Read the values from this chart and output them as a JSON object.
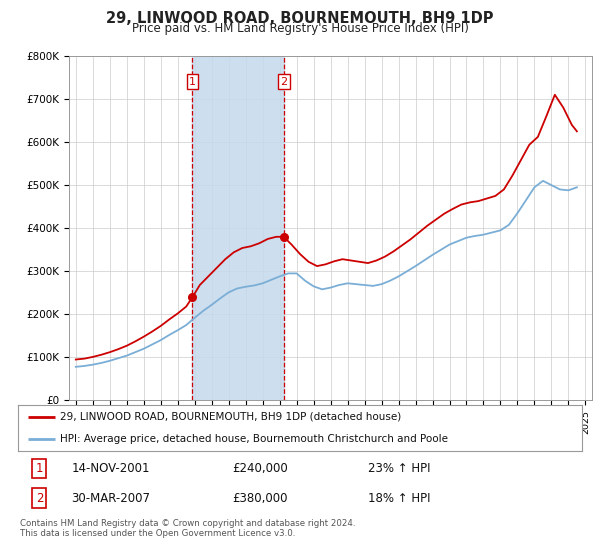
{
  "title": "29, LINWOOD ROAD, BOURNEMOUTH, BH9 1DP",
  "subtitle": "Price paid vs. HM Land Registry's House Price Index (HPI)",
  "ylabel_ticks": [
    "£0",
    "£100K",
    "£200K",
    "£300K",
    "£400K",
    "£500K",
    "£600K",
    "£700K",
    "£800K"
  ],
  "ylim": [
    0,
    800000
  ],
  "xlim_start": 1994.6,
  "xlim_end": 2025.4,
  "sale1_date": 2001.87,
  "sale1_price": 240000,
  "sale2_date": 2007.24,
  "sale2_price": 380000,
  "shade_color": "#c5d9ed",
  "vline_color": "#cc0000",
  "legend_line1": "29, LINWOOD ROAD, BOURNEMOUTH, BH9 1DP (detached house)",
  "legend_line2": "HPI: Average price, detached house, Bournemouth Christchurch and Poole",
  "annotation1_date": "14-NOV-2001",
  "annotation1_price": "£240,000",
  "annotation1_hpi": "23% ↑ HPI",
  "annotation2_date": "30-MAR-2007",
  "annotation2_price": "£380,000",
  "annotation2_hpi": "18% ↑ HPI",
  "footer": "Contains HM Land Registry data © Crown copyright and database right 2024.\nThis data is licensed under the Open Government Licence v3.0.",
  "line_color_red": "#cc0000",
  "line_color_blue": "#7aaed6",
  "background_color": "#ffffff",
  "grid_color": "#cccccc",
  "hpi_years": [
    1995.0,
    1995.5,
    1996.0,
    1996.5,
    1997.0,
    1997.5,
    1998.0,
    1998.5,
    1999.0,
    1999.5,
    2000.0,
    2000.5,
    2001.0,
    2001.5,
    2002.0,
    2002.5,
    2003.0,
    2003.5,
    2004.0,
    2004.5,
    2005.0,
    2005.5,
    2006.0,
    2006.5,
    2007.0,
    2007.5,
    2008.0,
    2008.5,
    2009.0,
    2009.5,
    2010.0,
    2010.5,
    2011.0,
    2011.5,
    2012.0,
    2012.5,
    2013.0,
    2013.5,
    2014.0,
    2014.5,
    2015.0,
    2015.5,
    2016.0,
    2016.5,
    2017.0,
    2017.5,
    2018.0,
    2018.5,
    2019.0,
    2019.5,
    2020.0,
    2020.5,
    2021.0,
    2021.5,
    2022.0,
    2022.5,
    2023.0,
    2023.5,
    2024.0,
    2024.5
  ],
  "hpi_values": [
    78000,
    80000,
    83000,
    87000,
    92000,
    98000,
    104000,
    112000,
    120000,
    130000,
    140000,
    152000,
    163000,
    175000,
    192000,
    208000,
    222000,
    237000,
    251000,
    260000,
    264000,
    267000,
    272000,
    280000,
    288000,
    295000,
    295000,
    278000,
    265000,
    258000,
    262000,
    268000,
    272000,
    270000,
    268000,
    266000,
    270000,
    278000,
    288000,
    300000,
    312000,
    325000,
    338000,
    350000,
    362000,
    370000,
    378000,
    382000,
    385000,
    390000,
    395000,
    408000,
    435000,
    465000,
    495000,
    510000,
    500000,
    490000,
    488000,
    495000
  ],
  "red_years": [
    1995.0,
    1995.5,
    1996.0,
    1996.5,
    1997.0,
    1997.5,
    1998.0,
    1998.5,
    1999.0,
    1999.5,
    2000.0,
    2000.5,
    2001.0,
    2001.5,
    2001.87,
    2002.3,
    2002.8,
    2003.3,
    2003.8,
    2004.3,
    2004.8,
    2005.3,
    2005.8,
    2006.3,
    2006.8,
    2007.24,
    2007.7,
    2008.2,
    2008.7,
    2009.2,
    2009.7,
    2010.2,
    2010.7,
    2011.2,
    2011.7,
    2012.2,
    2012.7,
    2013.2,
    2013.7,
    2014.2,
    2014.7,
    2015.2,
    2015.7,
    2016.2,
    2016.7,
    2017.2,
    2017.7,
    2018.2,
    2018.7,
    2019.2,
    2019.7,
    2020.2,
    2020.7,
    2021.2,
    2021.7,
    2022.2,
    2022.7,
    2023.2,
    2023.7,
    2024.2,
    2024.5
  ],
  "red_values": [
    95000,
    97000,
    101000,
    106000,
    112000,
    119000,
    127000,
    137000,
    148000,
    160000,
    173000,
    188000,
    202000,
    218000,
    240000,
    268000,
    288000,
    308000,
    328000,
    344000,
    354000,
    358000,
    365000,
    375000,
    380000,
    380000,
    362000,
    340000,
    322000,
    312000,
    316000,
    323000,
    328000,
    325000,
    322000,
    319000,
    325000,
    334000,
    346000,
    360000,
    374000,
    390000,
    406000,
    420000,
    434000,
    445000,
    455000,
    460000,
    463000,
    469000,
    475000,
    490000,
    522000,
    558000,
    594000,
    612000,
    660000,
    710000,
    680000,
    640000,
    625000
  ]
}
